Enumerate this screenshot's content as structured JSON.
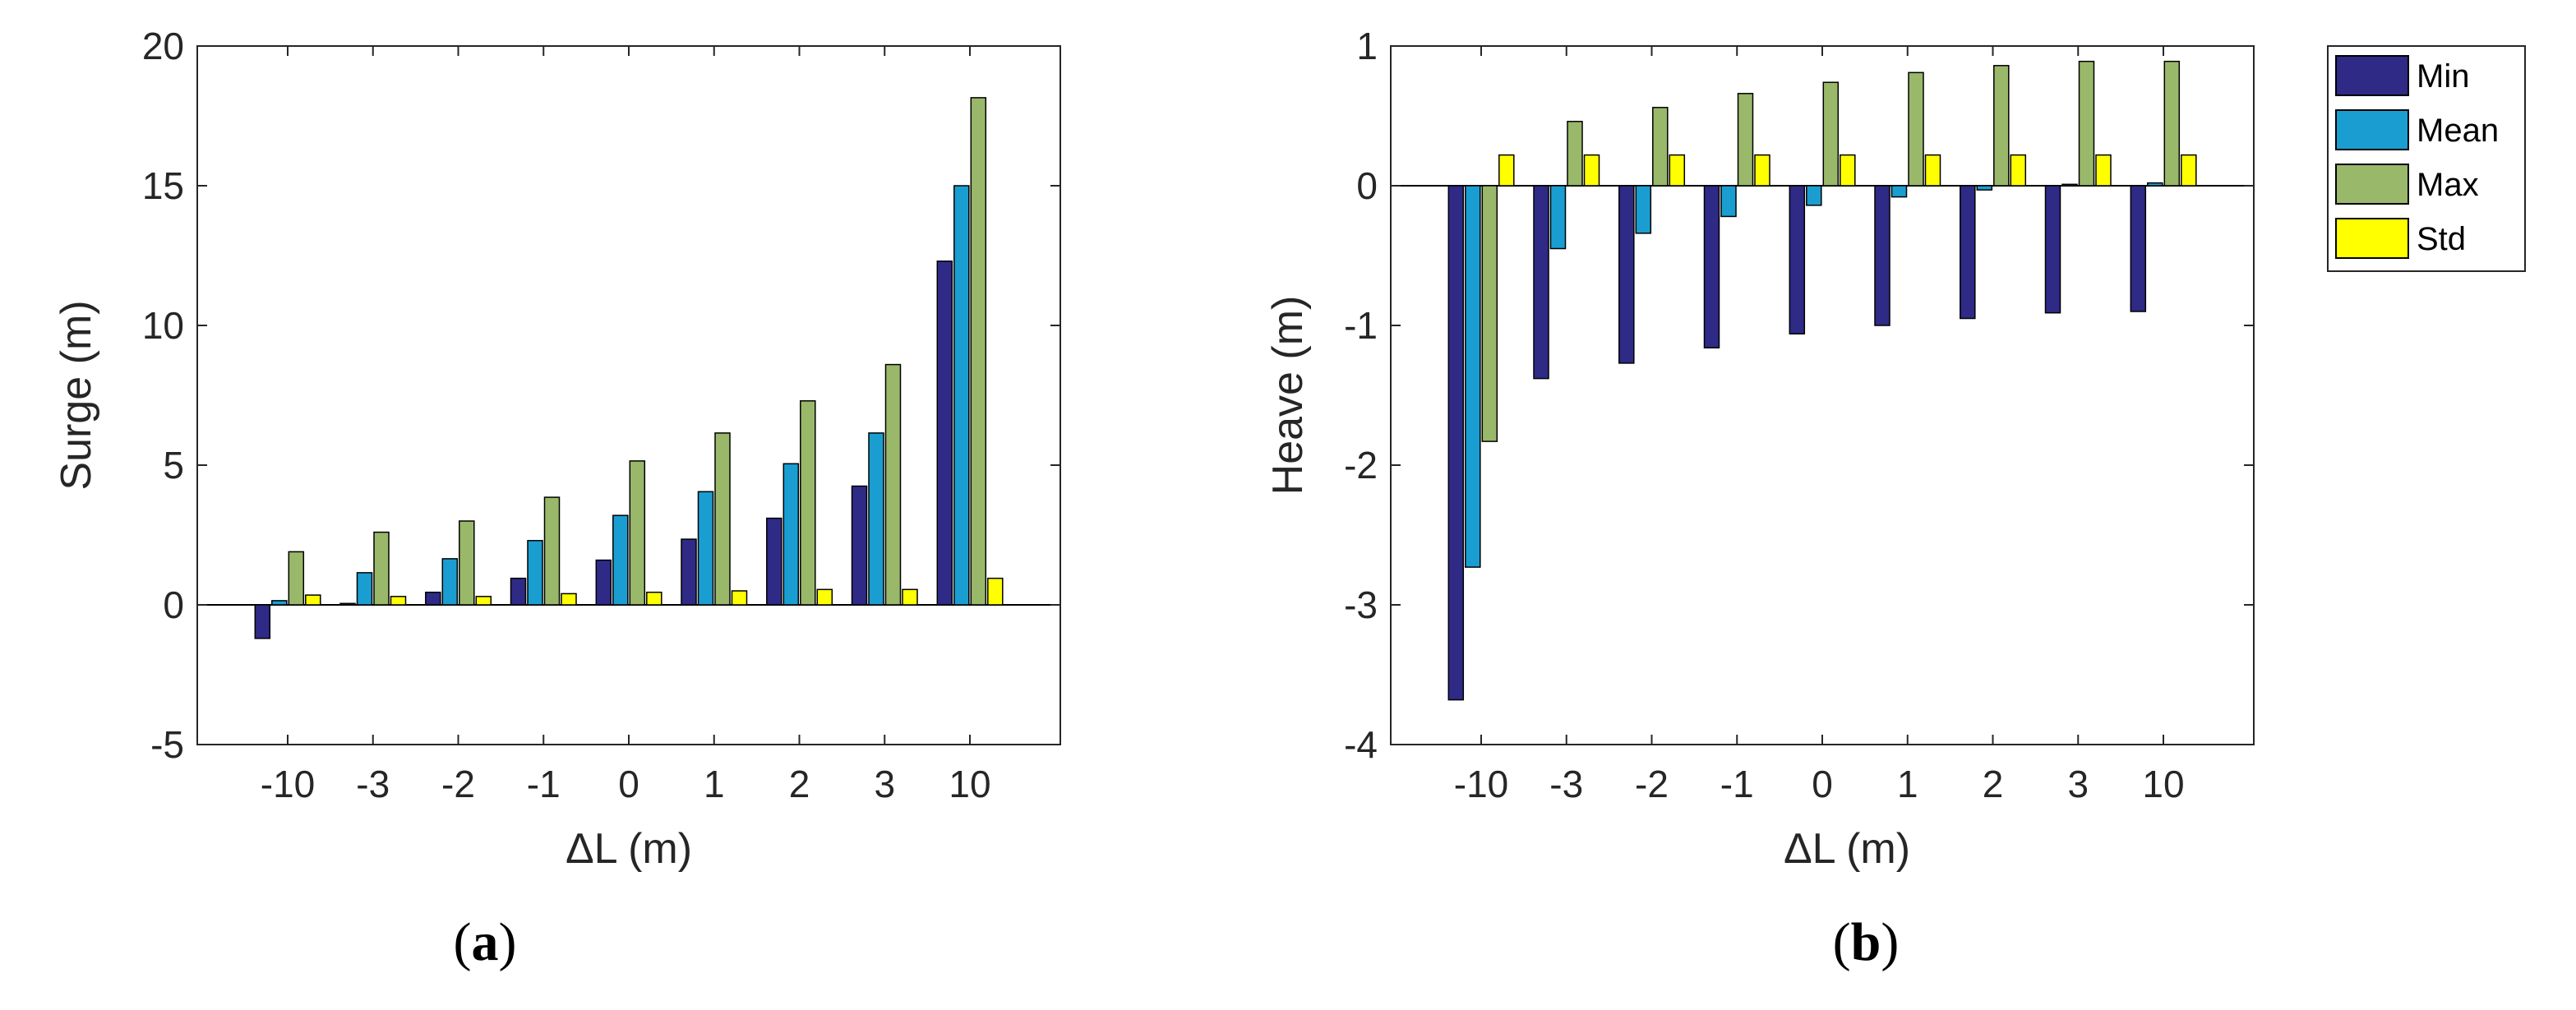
{
  "colors": {
    "min": "#2e2a86",
    "mean": "#1a9ed1",
    "max": "#99b86a",
    "std": "#ffff00",
    "axis": "#262626",
    "zero_line": "#000000"
  },
  "chart_data": [
    {
      "type": "bar",
      "panel": "a",
      "caption_open": "(",
      "caption_letter": "a",
      "caption_close": ")",
      "xlabel": "ΔL (m)",
      "ylabel": "Surge (m)",
      "ylim": [
        -5,
        20
      ],
      "yticks": [
        -5,
        0,
        5,
        10,
        15,
        20
      ],
      "categories": [
        "-10",
        "-3",
        "-2",
        "-1",
        "0",
        "1",
        "2",
        "3",
        "10"
      ],
      "legend_visible": false,
      "series": [
        {
          "name": "Min",
          "values": [
            -1.2,
            0.05,
            0.45,
            0.95,
            1.6,
            2.35,
            3.1,
            4.25,
            12.3
          ]
        },
        {
          "name": "Mean",
          "values": [
            0.15,
            1.15,
            1.65,
            2.3,
            3.2,
            4.05,
            5.05,
            6.15,
            15.0
          ]
        },
        {
          "name": "Max",
          "values": [
            1.9,
            2.6,
            3.0,
            3.85,
            5.15,
            6.15,
            7.3,
            8.6,
            18.15
          ]
        },
        {
          "name": "Std",
          "values": [
            0.35,
            0.3,
            0.3,
            0.4,
            0.45,
            0.5,
            0.55,
            0.55,
            0.95
          ]
        }
      ]
    },
    {
      "type": "bar",
      "panel": "b",
      "caption_open": "(",
      "caption_letter": "b",
      "caption_close": ")",
      "xlabel": "ΔL (m)",
      "ylabel": "Heave (m)",
      "ylim": [
        -4,
        1
      ],
      "yticks": [
        -4,
        -3,
        -2,
        -1,
        0,
        1
      ],
      "categories": [
        "-10",
        "-3",
        "-2",
        "-1",
        "0",
        "1",
        "2",
        "3",
        "10"
      ],
      "legend_visible": true,
      "legend_position": "outside-top-right",
      "series": [
        {
          "name": "Min",
          "values": [
            -3.68,
            -1.38,
            -1.27,
            -1.16,
            -1.06,
            -1.0,
            -0.95,
            -0.91,
            -0.9
          ]
        },
        {
          "name": "Mean",
          "values": [
            -2.73,
            -0.45,
            -0.34,
            -0.22,
            -0.14,
            -0.08,
            -0.03,
            0.01,
            0.02
          ]
        },
        {
          "name": "Max",
          "values": [
            -1.83,
            0.46,
            0.56,
            0.66,
            0.74,
            0.81,
            0.86,
            0.89,
            0.89
          ]
        },
        {
          "name": "Std",
          "values": [
            0.22,
            0.22,
            0.22,
            0.22,
            0.22,
            0.22,
            0.22,
            0.22,
            0.22
          ]
        }
      ]
    }
  ]
}
